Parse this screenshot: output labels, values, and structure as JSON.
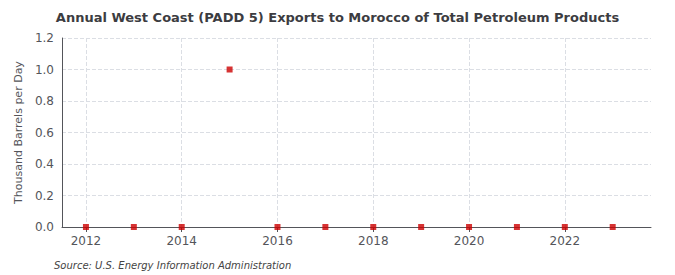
{
  "chart_data": {
    "type": "scatter",
    "title": "Annual West Coast (PADD 5) Exports to Morocco of Total Petroleum Products",
    "ylabel": "Thousand Barrels per Day",
    "source": "Source: U.S. Energy Information Administration",
    "x": [
      2012,
      2013,
      2014,
      2015,
      2016,
      2017,
      2018,
      2019,
      2020,
      2021,
      2022,
      2023
    ],
    "values": [
      0.0,
      0.0,
      0.0,
      1.0,
      0.0,
      0.0,
      0.0,
      0.0,
      0.0,
      0.0,
      0.0,
      0.0
    ],
    "color": "#cc0000",
    "marker": "square",
    "xlim": [
      2011.5,
      2023.8
    ],
    "ylim": [
      0.0,
      1.2
    ],
    "xticks": [
      2012,
      2014,
      2016,
      2018,
      2020,
      2022
    ],
    "yticks": [
      {
        "value": 0,
        "label": "0.0"
      },
      0.2,
      0.4,
      0.6,
      0.8,
      {
        "value": 1,
        "label": "1.0"
      },
      1.2
    ],
    "grid": true
  }
}
